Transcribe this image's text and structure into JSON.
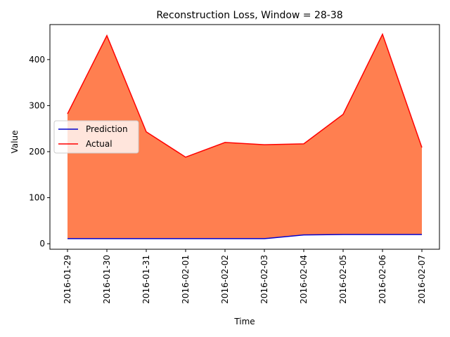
{
  "chart_data": {
    "type": "area",
    "title": "Reconstruction Loss, Window = 28-38",
    "xlabel": "Time",
    "ylabel": "Value",
    "ylim": [
      -12,
      476
    ],
    "yticks": [
      0,
      100,
      200,
      300,
      400
    ],
    "categories": [
      "2016-01-29",
      "2016-01-30",
      "2016-01-31",
      "2016-02-01",
      "2016-02-02",
      "2016-02-03",
      "2016-02-04",
      "2016-02-05",
      "2016-02-06",
      "2016-02-07"
    ],
    "series": [
      {
        "name": "Prediction",
        "color": "#0000cc",
        "values": [
          11,
          11,
          11,
          11,
          11,
          11,
          19,
          20,
          20,
          20
        ]
      },
      {
        "name": "Actual",
        "color": "#ff0000",
        "values": [
          282,
          452,
          243,
          188,
          220,
          215,
          217,
          281,
          455,
          209
        ]
      }
    ],
    "fill_between": {
      "color": "#ff7f50"
    },
    "legend": "center-left",
    "grid": false
  }
}
